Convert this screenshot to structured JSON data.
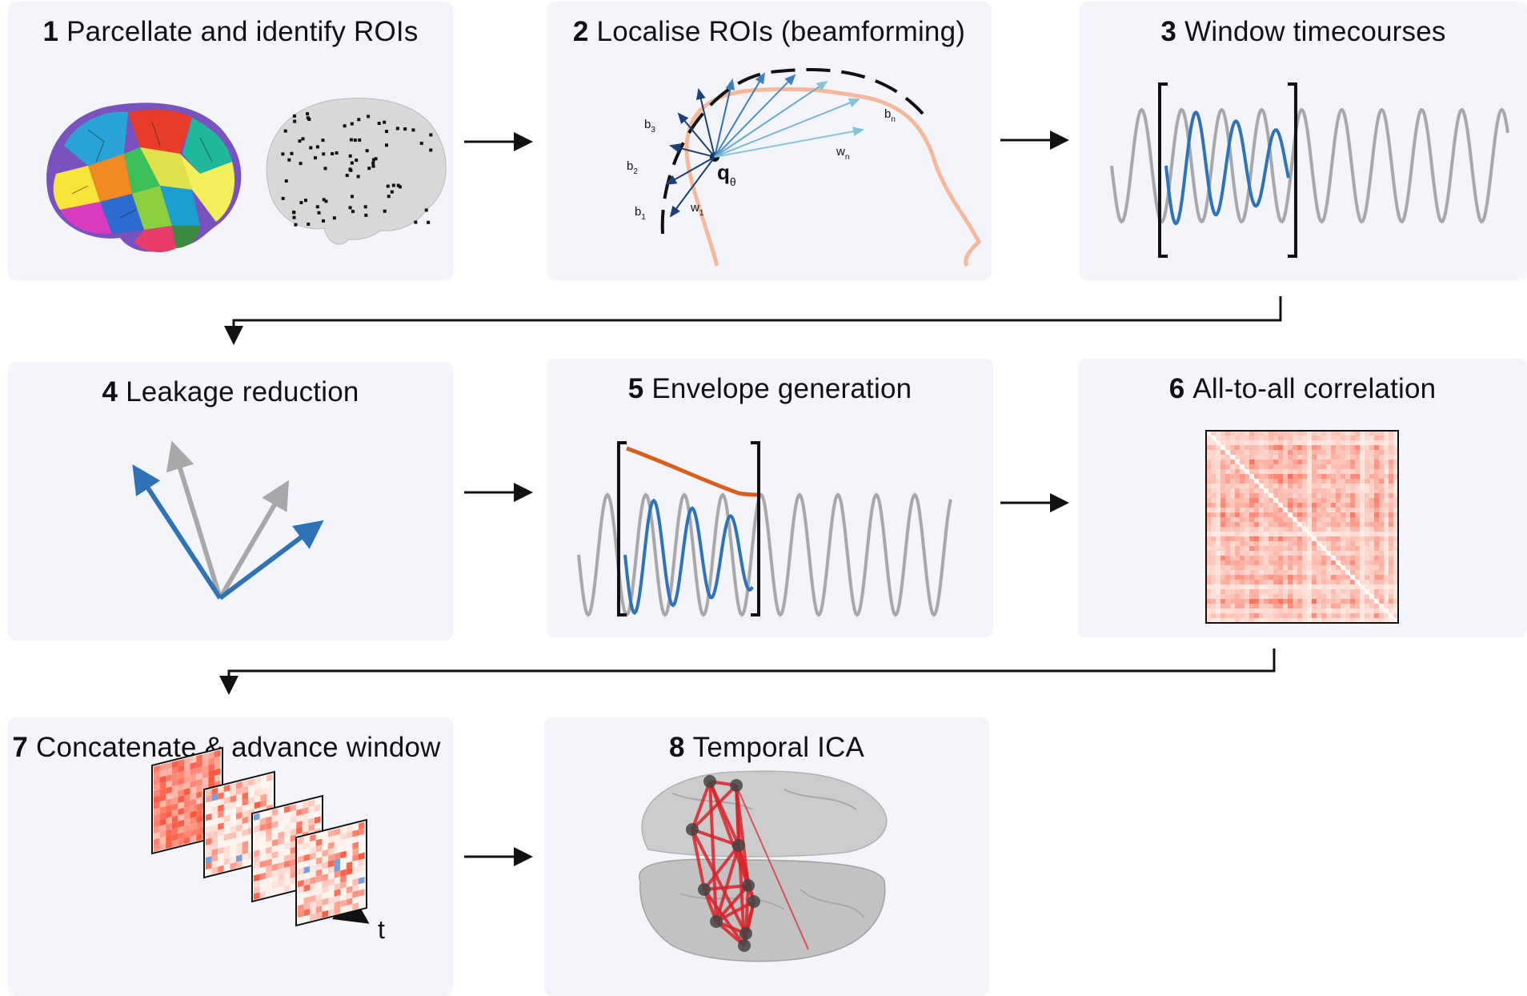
{
  "panels": [
    {
      "number": "1",
      "label": "Parcellate and identify ROIs"
    },
    {
      "number": "2",
      "label": "Localise ROIs (beamforming)"
    },
    {
      "number": "3",
      "label": "Window timecourses"
    },
    {
      "number": "4",
      "label": "Leakage reduction"
    },
    {
      "number": "5",
      "label": "Envelope generation"
    },
    {
      "number": "6",
      "label": "All-to-all correlation"
    },
    {
      "number": "7",
      "label": "Concatenate & advance window"
    },
    {
      "number": "8",
      "label": "Temporal ICA"
    }
  ],
  "beamformer_labels": {
    "b3": "b",
    "b3_sub": "3",
    "b2": "b",
    "b2_sub": "2",
    "b1": "b",
    "b1_sub": "1",
    "bn": "b",
    "bn_sub": "n",
    "w1": "w",
    "w1_sub": "1",
    "wn": "w",
    "wn_sub": "n",
    "q": "q",
    "q_sub": "θ"
  },
  "time_axis_label": "t",
  "colors": {
    "panel_bg": "#f4f5fa",
    "signal_blue": "#2f72b6",
    "signal_gray": "#a8a8a8",
    "envelope_orange": "#d9601c",
    "head_outline": "#f6b89a",
    "correlation_red": "#e05a45",
    "network_red": "#d8232a"
  },
  "icons": [
    "brain-parcellation-icon",
    "brain-roi-icon",
    "head-diagram-icon",
    "vector-arrows-icon",
    "correlation-matrix-icon",
    "stacked-matrices-icon",
    "brain-network-icon"
  ]
}
